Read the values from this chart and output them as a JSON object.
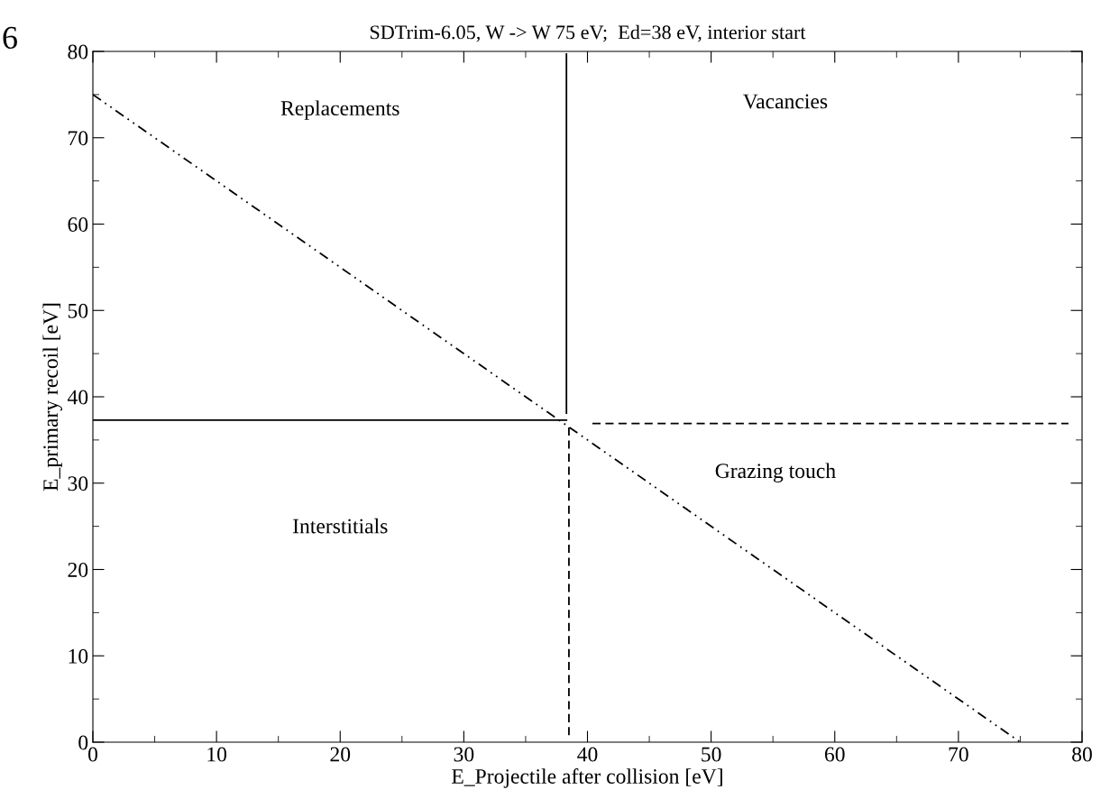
{
  "chart_data": {
    "type": "line",
    "title": "SDTrim-6.05, W -> W 75 eV;  Ed=38 eV, interior start",
    "xlabel": "E_Projectile after collision [eV]",
    "ylabel": "E_primary recoil [eV]",
    "xlim": [
      0,
      80
    ],
    "ylim": [
      0,
      80
    ],
    "xticks": [
      0,
      10,
      20,
      30,
      40,
      50,
      60,
      70,
      80
    ],
    "yticks": [
      0,
      10,
      20,
      30,
      40,
      50,
      60,
      70,
      80
    ],
    "grid": false,
    "legend": false,
    "marker": "none",
    "series": [
      {
        "x": [
          0,
          75
        ],
        "values": [
          75,
          0
        ],
        "color": "#000000",
        "line_style": "dashdot"
      },
      {
        "x": [
          38.3,
          38.3
        ],
        "values": [
          38.1,
          79.7
        ],
        "color": "#000000",
        "line_style": "solid"
      },
      {
        "x": [
          0,
          38.3
        ],
        "values": [
          37.3,
          37.3
        ],
        "color": "#000000",
        "line_style": "solid"
      },
      {
        "x": [
          38.5,
          38.5
        ],
        "values": [
          0.8,
          36.7
        ],
        "color": "#000000",
        "line_style": "dashed"
      },
      {
        "x": [
          40.4,
          78.9
        ],
        "values": [
          36.9,
          36.9
        ],
        "color": "#000000",
        "line_style": "dashed"
      }
    ],
    "annotations": [
      "Replacements",
      "Vacancies",
      "Grazing touch",
      "Interstitials",
      "6"
    ]
  }
}
